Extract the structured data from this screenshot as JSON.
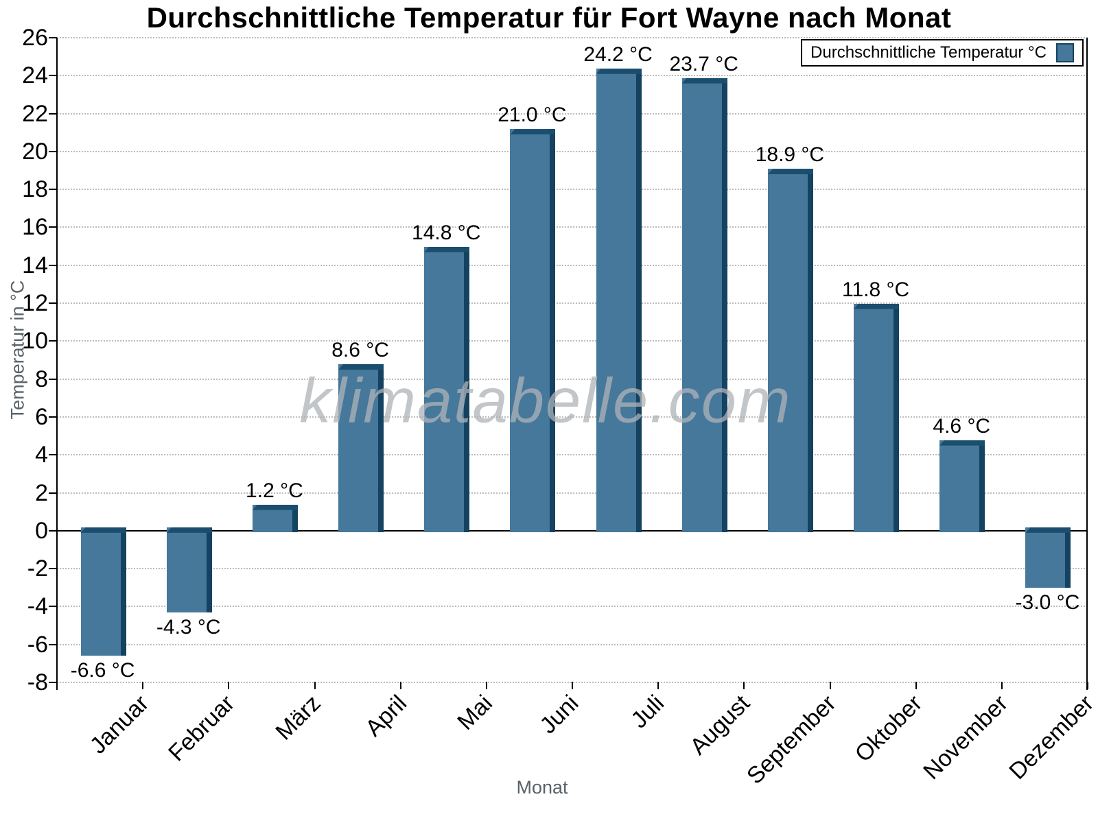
{
  "chart_data": {
    "type": "bar",
    "title": "Durchschnittliche Temperatur für Fort Wayne nach Monat",
    "xlabel": "Monat",
    "ylabel": "Temperatur in °C",
    "categories": [
      "Januar",
      "Februar",
      "März",
      "April",
      "Mai",
      "Juni",
      "Juli",
      "August",
      "September",
      "Oktober",
      "November",
      "Dezember"
    ],
    "values": [
      -6.6,
      -4.3,
      1.2,
      8.6,
      14.8,
      21.0,
      24.2,
      23.7,
      18.9,
      11.8,
      4.6,
      -3.0
    ],
    "value_labels": [
      "-6.6 °C",
      "-4.3 °C",
      "1.2 °C",
      "8.6 °C",
      "14.8 °C",
      "21.0 °C",
      "24.2 °C",
      "23.7 °C",
      "18.9 °C",
      "11.8 °C",
      "4.6 °C",
      "-3.0 °C"
    ],
    "ylim": [
      -8,
      26
    ],
    "ytick_step": 2,
    "grid": true,
    "legend": {
      "label": "Durchschnittliche Temperatur °C",
      "position": "top-right"
    },
    "watermark": "klimatabelle.com",
    "colors": {
      "bar_face": "#45789B",
      "bar_top": "#1B4E6E",
      "bar_side": "#154260",
      "grid": "#BCBCBC",
      "axis": "#000000",
      "zero_line": "#000000",
      "tick_label": "#000000",
      "axis_title": "#5A6268",
      "watermark": "#AFB3B7",
      "background": "#FFFFFF"
    }
  }
}
